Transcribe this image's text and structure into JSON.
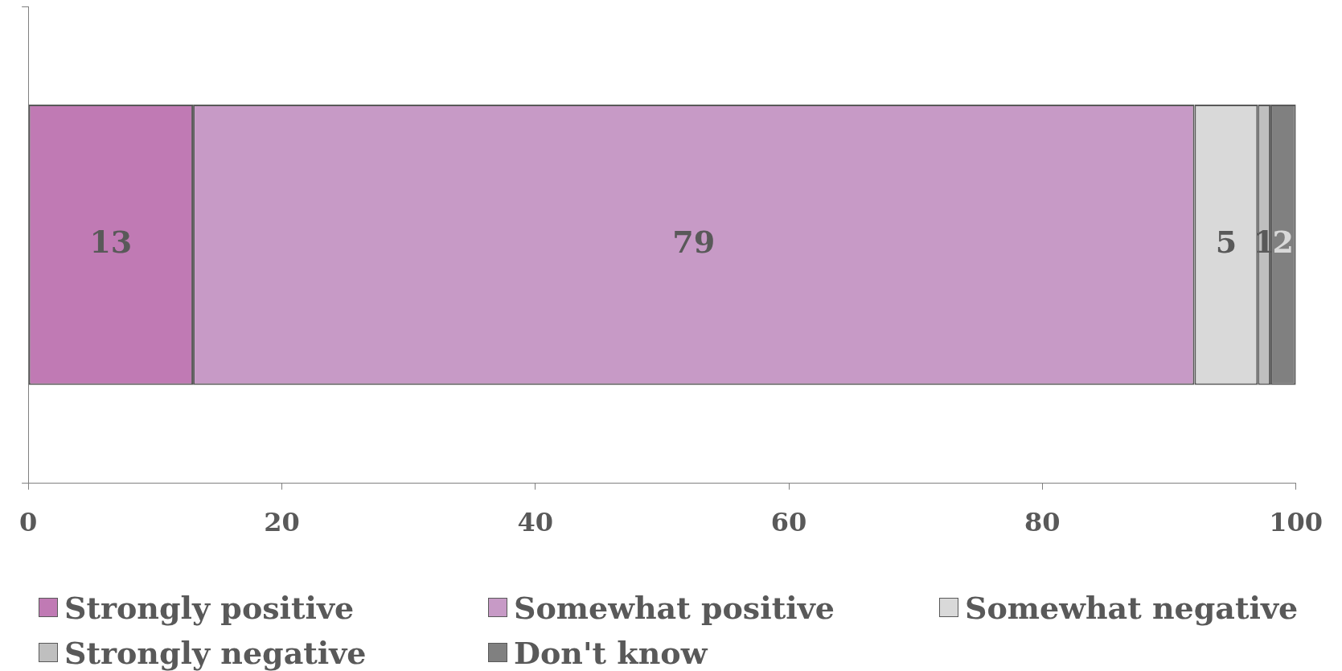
{
  "chart_data": {
    "type": "bar",
    "orientation": "horizontal",
    "stacked": true,
    "categories": [
      null
    ],
    "series": [
      {
        "name": "Strongly positive",
        "color": "#c07ab4",
        "values": [
          13
        ]
      },
      {
        "name": "Somewhat positive",
        "color": "#c79ac6",
        "values": [
          79
        ]
      },
      {
        "name": "Somewhat negative",
        "color": "#d9d9d9",
        "values": [
          5
        ]
      },
      {
        "name": "Strongly negative",
        "color": "#bfbfbf",
        "values": [
          1
        ]
      },
      {
        "name": "Don't know",
        "color": "#808080",
        "values": [
          2
        ]
      }
    ],
    "xlim": [
      0,
      100
    ],
    "xticks": [
      0,
      20,
      40,
      60,
      80,
      100
    ],
    "data_labels": true,
    "legend": "bottom",
    "grid": false
  }
}
